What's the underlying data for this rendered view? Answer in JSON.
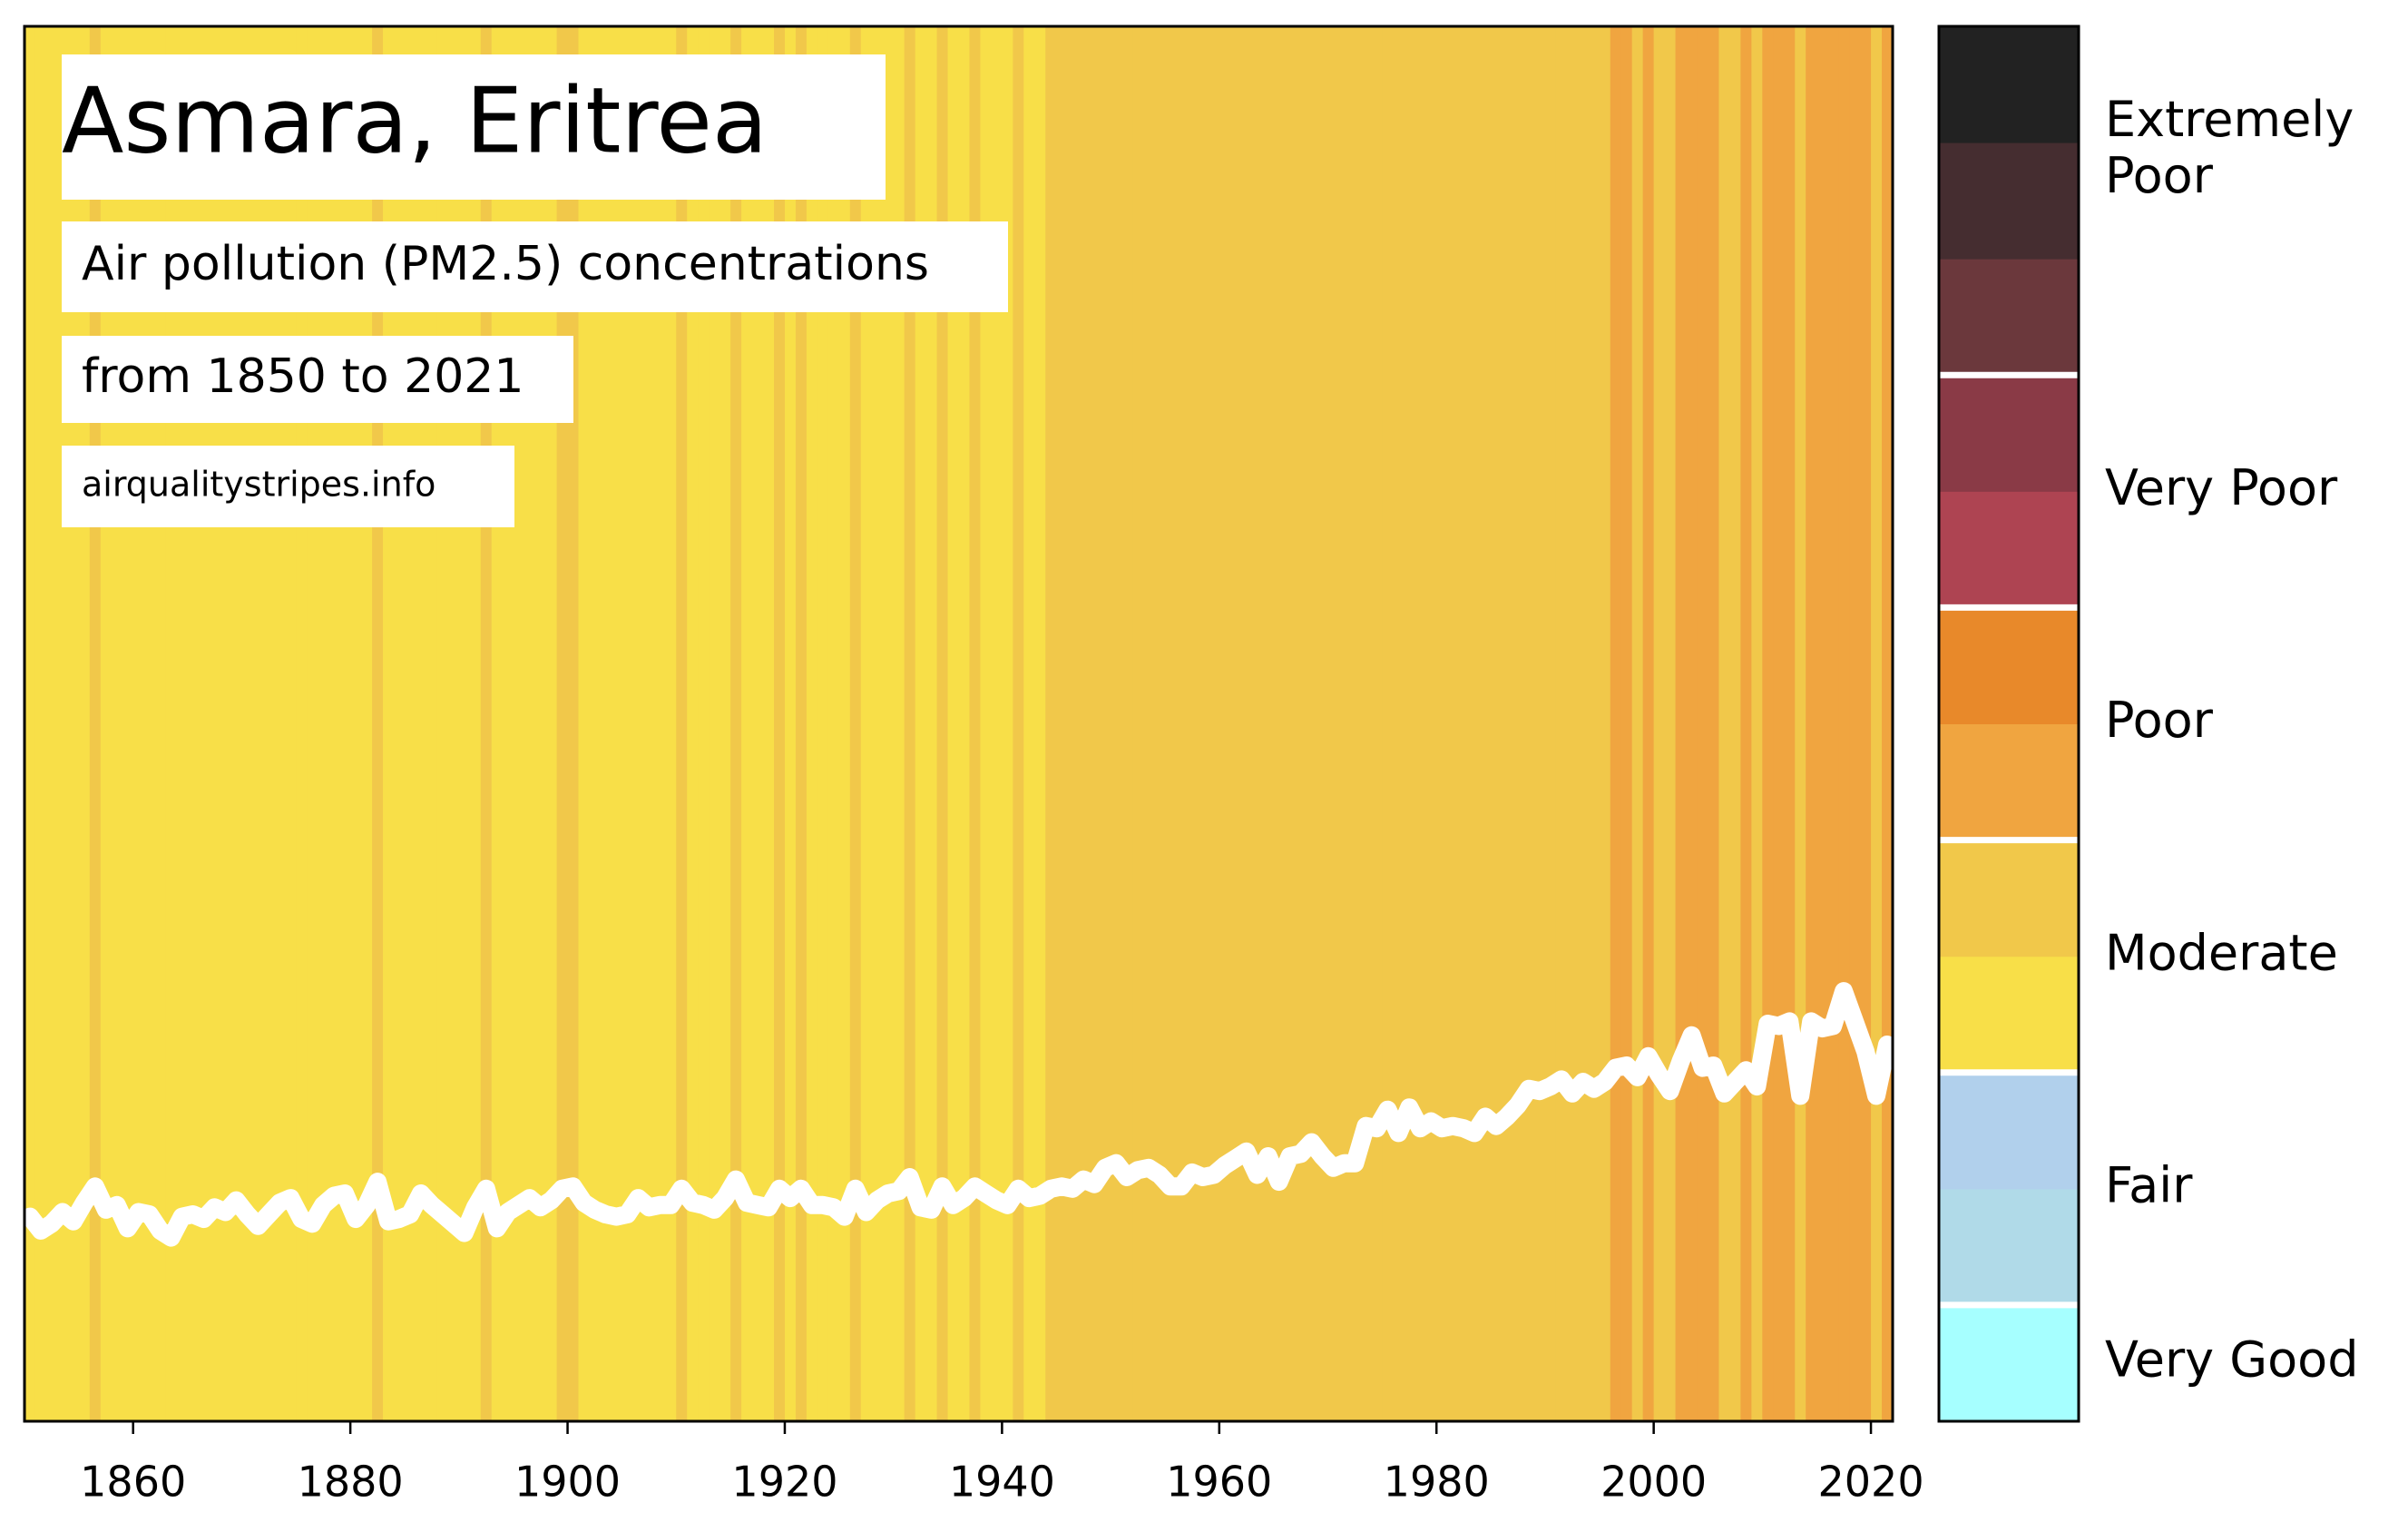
{
  "chart_data": {
    "type": "stripes",
    "title": "Asmara, Eritrea",
    "subtitle": "Air pollution (PM2.5) concentrations",
    "period": "from 1850 to 2021",
    "source": "airqualitystripes.info",
    "x": [
      1850,
      1851,
      1852,
      1853,
      1854,
      1855,
      1856,
      1857,
      1858,
      1859,
      1860,
      1861,
      1862,
      1863,
      1864,
      1865,
      1866,
      1867,
      1868,
      1869,
      1870,
      1871,
      1872,
      1873,
      1874,
      1875,
      1876,
      1877,
      1878,
      1879,
      1880,
      1881,
      1882,
      1883,
      1884,
      1885,
      1886,
      1887,
      1888,
      1889,
      1890,
      1891,
      1892,
      1893,
      1894,
      1895,
      1896,
      1897,
      1898,
      1899,
      1900,
      1901,
      1902,
      1903,
      1904,
      1905,
      1906,
      1907,
      1908,
      1909,
      1910,
      1911,
      1912,
      1913,
      1914,
      1915,
      1916,
      1917,
      1918,
      1919,
      1920,
      1921,
      1922,
      1923,
      1924,
      1925,
      1926,
      1927,
      1928,
      1929,
      1930,
      1931,
      1932,
      1933,
      1934,
      1935,
      1936,
      1937,
      1938,
      1939,
      1940,
      1941,
      1942,
      1943,
      1944,
      1945,
      1946,
      1947,
      1948,
      1949,
      1950,
      1951,
      1952,
      1953,
      1954,
      1955,
      1956,
      1957,
      1958,
      1959,
      1960,
      1961,
      1962,
      1963,
      1964,
      1965,
      1966,
      1967,
      1968,
      1969,
      1970,
      1971,
      1972,
      1973,
      1974,
      1975,
      1976,
      1977,
      1978,
      1979,
      1980,
      1981,
      1982,
      1983,
      1984,
      1985,
      1986,
      1987,
      1988,
      1989,
      1990,
      1991,
      1992,
      1993,
      1994,
      1995,
      1996,
      1997,
      1998,
      1999,
      2000,
      2001,
      2002,
      2003,
      2004,
      2005,
      2006,
      2007,
      2008,
      2009,
      2010,
      2011,
      2012,
      2013,
      2014,
      2015,
      2016,
      2017,
      2018,
      2019,
      2020,
      2021
    ],
    "values": [
      18.8,
      18.2,
      18.5,
      19.0,
      18.6,
      19.4,
      20.1,
      19.1,
      19.3,
      18.3,
      19.0,
      18.9,
      18.2,
      17.9,
      18.8,
      18.9,
      18.7,
      19.2,
      19.0,
      19.5,
      18.9,
      18.4,
      18.9,
      19.4,
      19.6,
      18.7,
      18.5,
      19.3,
      19.7,
      19.8,
      18.7,
      19.3,
      20.3,
      18.6,
      18.7,
      18.9,
      19.8,
      19.3,
      18.9,
      18.5,
      18.1,
      19.2,
      20.0,
      18.3,
      19.0,
      19.3,
      19.6,
      19.2,
      19.5,
      20.0,
      20.1,
      19.4,
      19.1,
      18.9,
      18.8,
      18.9,
      19.6,
      19.2,
      19.3,
      19.3,
      20.0,
      19.4,
      19.3,
      19.1,
      19.6,
      20.4,
      19.4,
      19.3,
      19.2,
      20.0,
      19.6,
      20.0,
      19.3,
      19.3,
      19.2,
      18.8,
      20.0,
      19.0,
      19.5,
      19.8,
      19.9,
      20.5,
      19.2,
      19.1,
      20.1,
      19.3,
      19.6,
      20.1,
      19.8,
      19.5,
      19.3,
      20.0,
      19.6,
      19.7,
      20.0,
      20.1,
      20.0,
      20.4,
      20.2,
      20.9,
      21.1,
      20.5,
      20.8,
      20.9,
      20.6,
      20.1,
      20.1,
      20.7,
      20.5,
      20.6,
      21.0,
      21.3,
      21.6,
      20.6,
      21.4,
      20.3,
      21.4,
      21.5,
      22.0,
      21.4,
      20.9,
      21.1,
      21.1,
      22.7,
      22.6,
      23.4,
      22.4,
      23.5,
      22.6,
      22.9,
      22.6,
      22.7,
      22.6,
      22.4,
      23.1,
      22.7,
      23.1,
      23.6,
      24.3,
      24.2,
      24.4,
      24.7,
      24.1,
      24.6,
      24.3,
      24.6,
      25.2,
      25.3,
      24.8,
      25.7,
      24.9,
      24.2,
      25.5,
      26.6,
      25.2,
      25.3,
      24.1,
      24.6,
      25.1,
      24.4,
      27.1,
      27.0,
      27.2,
      24.0,
      27.2,
      26.9,
      27.0,
      28.5,
      27.2,
      25.9,
      24.0,
      26.2
    ],
    "line_color": "#ffffff",
    "xlim": [
      1850,
      2022
    ],
    "xticks": [
      1860,
      1880,
      1900,
      1920,
      1940,
      1960,
      1980,
      2000,
      2020
    ],
    "ylim": [
      10,
      70
    ],
    "colorbar": {
      "clim": [
        0,
        60
      ],
      "colors": [
        "#a6ffff",
        "#b0dae8",
        "#b1d0ec",
        "#f8df48",
        "#f1c84a",
        "#f0a540",
        "#e8892a",
        "#ae4452",
        "#8a3a46",
        "#6b383c",
        "#452d30",
        "#222222"
      ],
      "categories": [
        {
          "label": "Very Good",
          "from": 0,
          "to": 5
        },
        {
          "label": "Fair",
          "from": 5,
          "to": 15
        },
        {
          "label": "Moderate",
          "from": 15,
          "to": 25
        },
        {
          "label": "Poor",
          "from": 25,
          "to": 35
        },
        {
          "label": "Very Poor",
          "from": 35,
          "to": 45
        },
        {
          "label": "Extremely\nPoor",
          "from": 45,
          "to": 60
        }
      ]
    }
  }
}
